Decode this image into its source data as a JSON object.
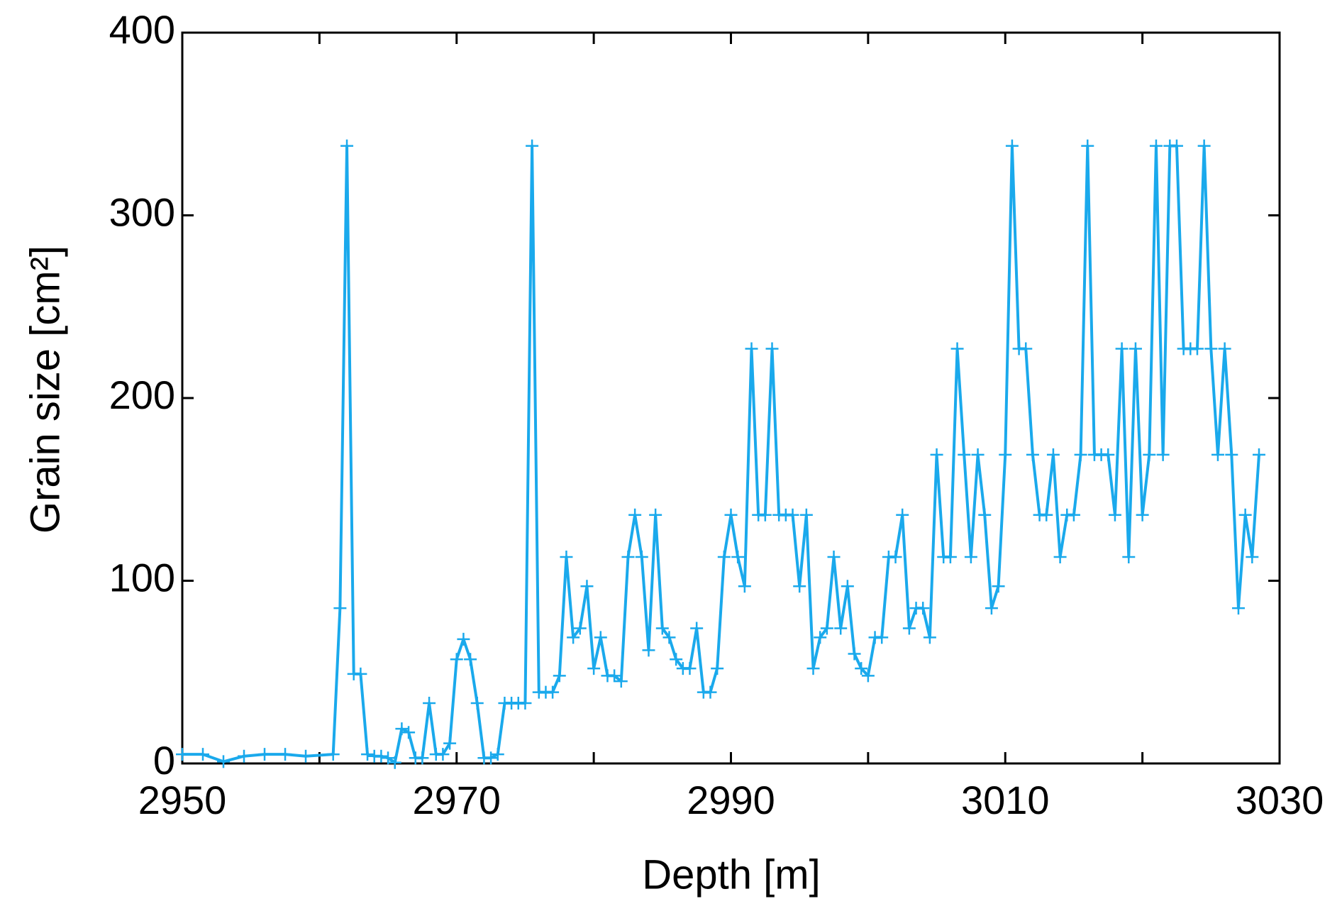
{
  "chart_data": {
    "type": "line",
    "xlabel": "Depth [m]",
    "ylabel": "Grain size [cm²]",
    "xlim": [
      2950,
      3030
    ],
    "ylim": [
      0,
      400
    ],
    "xticks": [
      2950,
      2970,
      2990,
      3010,
      3030
    ],
    "xminor_ticks": [
      2960,
      2980,
      3000,
      3020
    ],
    "yticks": [
      0,
      100,
      200,
      300,
      400
    ],
    "series": [
      {
        "color": "#1aa9ec",
        "x": [
          2950,
          2951.5,
          2953,
          2954.5,
          2956,
          2957.5,
          2959,
          2961,
          2961.5,
          2962,
          2962.5,
          2963,
          2963.5,
          2964,
          2964.5,
          2965,
          2965.5,
          2966,
          2966.5,
          2967,
          2967.5,
          2968,
          2968.5,
          2969,
          2969.5,
          2970,
          2970.5,
          2971,
          2971.5,
          2972,
          2972.5,
          2973,
          2973.5,
          2974,
          2974.5,
          2975,
          2975.5,
          2976,
          2976.5,
          2977,
          2977.5,
          2978,
          2978.5,
          2979,
          2979.5,
          2980,
          2980.5,
          2981,
          2981.5,
          2982,
          2982.5,
          2983,
          2983.5,
          2984,
          2984.5,
          2985,
          2985.5,
          2986,
          2986.5,
          2987,
          2987.5,
          2988,
          2988.5,
          2989,
          2989.5,
          2990,
          2990.5,
          2991,
          2991.5,
          2992,
          2992.5,
          2993,
          2993.5,
          2994,
          2994.5,
          2995,
          2995.5,
          2996,
          2996.5,
          2997,
          2997.5,
          2998,
          2998.5,
          2999,
          2999.5,
          3000,
          3000.5,
          3001,
          3001.5,
          3002,
          3002.5,
          3003,
          3003.5,
          3004,
          3004.5,
          3005,
          3005.5,
          3006,
          3006.5,
          3007,
          3007.5,
          3008,
          3008.5,
          3009,
          3009.5,
          3010,
          3010.5,
          3011,
          3011.5,
          3012,
          3012.5,
          3013,
          3013.5,
          3014,
          3014.5,
          3015,
          3015.5,
          3016,
          3016.5,
          3017,
          3017.5,
          3018,
          3018.5,
          3019,
          3019.5,
          3020,
          3020.5,
          3021,
          3021.5,
          3022,
          3022.5,
          3023,
          3023.5,
          3024,
          3024.5,
          3025,
          3025.5,
          3026,
          3026.5,
          3027,
          3027.5,
          3028,
          3028.5
        ],
        "values": [
          5,
          5,
          1,
          4,
          5,
          5,
          4,
          5,
          85,
          338,
          49,
          49,
          5,
          4,
          4,
          3,
          0.5,
          19,
          17,
          3,
          3,
          33,
          5,
          5,
          11,
          57,
          68,
          57,
          33,
          3,
          3,
          5,
          33,
          33,
          33,
          33,
          338,
          39,
          39,
          39,
          48,
          113,
          69,
          74,
          97,
          52,
          69,
          48,
          48,
          45,
          113,
          136,
          113,
          62,
          136,
          74,
          69,
          57,
          52,
          52,
          74,
          39,
          39,
          52,
          113,
          136,
          113,
          97,
          227,
          136,
          136,
          227,
          136,
          136,
          136,
          97,
          136,
          52,
          69,
          74,
          113,
          74,
          97,
          60,
          52,
          48,
          69,
          69,
          113,
          113,
          136,
          74,
          85,
          85,
          69,
          169,
          113,
          113,
          227,
          169,
          113,
          169,
          136,
          85,
          97,
          169,
          338,
          227,
          227,
          169,
          136,
          136,
          169,
          113,
          136,
          136,
          169,
          338,
          169,
          169,
          169,
          136,
          227,
          113,
          227,
          136,
          169,
          338,
          169,
          338,
          338,
          227,
          227,
          227,
          338,
          227,
          169,
          227,
          169,
          85,
          136,
          113,
          169
        ]
      }
    ]
  }
}
